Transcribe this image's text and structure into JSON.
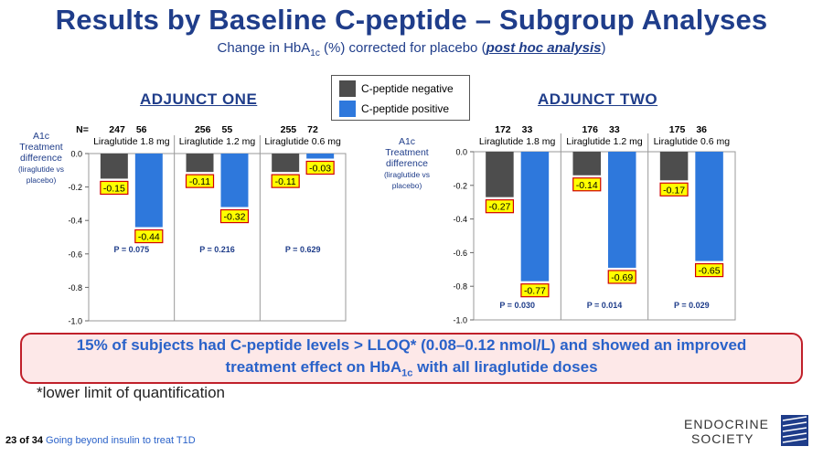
{
  "slide": {
    "title": "Results by Baseline C-peptide – Subgroup Analyses",
    "subtitle_prefix": "Change in HbA",
    "subtitle_sub": "1c",
    "subtitle_mid": " (%) corrected for placebo (",
    "subtitle_ph": "post hoc analysis",
    "subtitle_suffix": ")"
  },
  "legend": {
    "items": [
      {
        "label": "C-peptide negative",
        "color": "#4d4d4d"
      },
      {
        "label": "C-peptide positive",
        "color": "#2e78dc"
      }
    ]
  },
  "colors": {
    "negative": "#4d4d4d",
    "positive": "#2e78dc",
    "label_box": "#ffff00",
    "label_border": "#d00000",
    "title": "#1f3d8a"
  },
  "chart_data": [
    {
      "type": "bar",
      "title": "ADJUNCT ONE",
      "n_prefix": "N=",
      "ylabel_lines": [
        "A1c",
        "Treatment",
        "difference",
        "(liraglutide vs",
        "placebo)"
      ],
      "ylim": [
        -1.0,
        0.0
      ],
      "yticks": [
        "0.0",
        "-0.2",
        "-0.4",
        "-0.6",
        "-0.8",
        "-1.0"
      ],
      "categories": [
        "Liraglutide 1.8 mg",
        "Liraglutide 1.2 mg",
        "Liraglutide 0.6 mg"
      ],
      "n": [
        [
          "247",
          "56"
        ],
        [
          "256",
          "55"
        ],
        [
          "255",
          "72"
        ]
      ],
      "series": [
        {
          "name": "C-peptide negative",
          "values": [
            -0.15,
            -0.11,
            -0.11
          ],
          "labels": [
            "-0.15",
            "-0.11",
            "-0.11"
          ]
        },
        {
          "name": "C-peptide positive",
          "values": [
            -0.44,
            -0.32,
            -0.03
          ],
          "labels": [
            "-0.44",
            "-0.32",
            "-0.03"
          ]
        }
      ],
      "p_values": [
        "P = 0.075",
        "P = 0.216",
        "P = 0.629"
      ],
      "grid": false
    },
    {
      "type": "bar",
      "title": "ADJUNCT TWO",
      "ylabel_lines": [
        "A1c",
        "Treatment",
        "difference",
        "(liraglutide vs",
        "placebo)"
      ],
      "ylim": [
        -1.0,
        0.0
      ],
      "yticks": [
        "0.0",
        "-0.2",
        "-0.4",
        "-0.6",
        "-0.8",
        "-1.0"
      ],
      "categories": [
        "Liraglutide 1.8 mg",
        "Liraglutide 1.2 mg",
        "Liraglutide 0.6 mg"
      ],
      "n": [
        [
          "172",
          "33"
        ],
        [
          "176",
          "33"
        ],
        [
          "175",
          "36"
        ]
      ],
      "series": [
        {
          "name": "C-peptide negative",
          "values": [
            -0.27,
            -0.14,
            -0.17
          ],
          "labels": [
            "-0.27",
            "-0.14",
            "-0.17"
          ]
        },
        {
          "name": "C-peptide positive",
          "values": [
            -0.77,
            -0.69,
            -0.65
          ],
          "labels": [
            "-0.77",
            "-0.69",
            "-0.65"
          ]
        }
      ],
      "p_values": [
        "P = 0.030",
        "P = 0.014",
        "P = 0.029"
      ],
      "grid": false
    }
  ],
  "callout": {
    "line1": "15% of subjects had C-peptide levels > LLOQ* (0.08–0.12 nmol/L) and showed an improved",
    "line2_prefix": "treatment effect on HbA",
    "line2_sub": "1c",
    "line2_suffix": " with all liraglutide doses"
  },
  "footnote": "*lower limit of quantification",
  "footer": {
    "page": "23 of 34",
    "text": "Going beyond insulin to treat T1D"
  },
  "logo": {
    "line1": "ENDOCRINE",
    "line2": "SOCIETY"
  }
}
